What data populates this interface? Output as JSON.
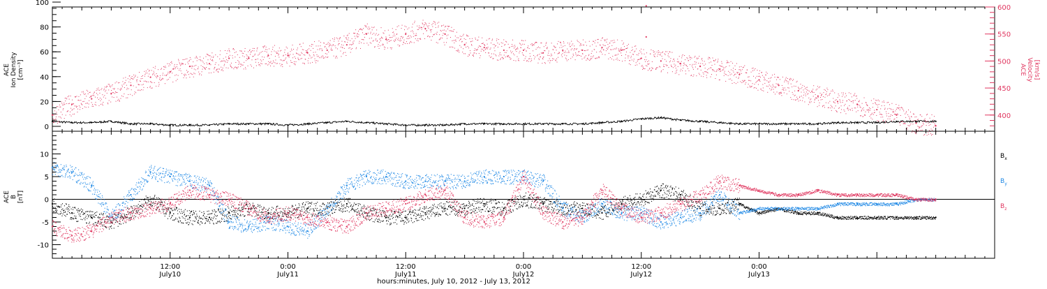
{
  "chart_data": [
    {
      "type": "scatter",
      "panel": "top",
      "ylabel_left": [
        "ACE",
        "Ion Density",
        "[cm⁻³]"
      ],
      "ylabel_right": [
        "ACE",
        "Velocity",
        "[km/s]"
      ],
      "ylim_left": [
        0,
        100
      ],
      "ylim_right": [
        370,
        600
      ],
      "yticks_left": [
        "0",
        "20",
        "40",
        "60",
        "80",
        "100"
      ],
      "yticks_right": [
        "400",
        "450",
        "500",
        "550",
        "600"
      ],
      "colors": {
        "density": "#000000",
        "velocity": "#e0365f"
      },
      "series": [
        {
          "name": "",
          "color_key": "density",
          "axis": "left",
          "x_hours": [
            0,
            2,
            4,
            6,
            8,
            10,
            12,
            14,
            16,
            18,
            20,
            22,
            24,
            26,
            28,
            30,
            32,
            34,
            36,
            38,
            40,
            42,
            44,
            46,
            48,
            50,
            52,
            54,
            56,
            58,
            60,
            62,
            64,
            66,
            68,
            70,
            72,
            74,
            76,
            78,
            80,
            82,
            84,
            86,
            88,
            90
          ],
          "values": [
            4,
            3,
            3,
            4,
            2,
            2,
            1,
            1,
            1,
            2,
            2,
            2,
            1,
            2,
            3,
            4,
            3,
            2,
            1,
            1,
            1,
            2,
            2,
            2,
            2,
            2,
            2,
            2,
            3,
            4,
            6,
            7,
            5,
            4,
            3,
            2,
            2,
            2,
            2,
            2,
            3,
            3,
            3,
            4,
            4,
            4
          ]
        },
        {
          "name": "",
          "color_key": "velocity",
          "axis": "right",
          "x_hours": [
            0,
            2,
            4,
            6,
            8,
            10,
            12,
            14,
            16,
            18,
            20,
            22,
            24,
            26,
            28,
            30,
            32,
            34,
            36,
            38,
            40,
            42,
            44,
            46,
            48,
            50,
            52,
            54,
            56,
            58,
            60,
            62,
            64,
            66,
            68,
            70,
            72,
            74,
            76,
            78,
            80,
            82,
            84,
            86,
            88,
            90
          ],
          "values": [
            400,
            420,
            430,
            440,
            455,
            470,
            480,
            490,
            495,
            505,
            505,
            510,
            510,
            515,
            520,
            530,
            550,
            540,
            550,
            560,
            550,
            530,
            525,
            520,
            520,
            515,
            520,
            520,
            525,
            520,
            505,
            500,
            495,
            490,
            485,
            475,
            465,
            455,
            445,
            435,
            425,
            420,
            410,
            400,
            385,
            380
          ]
        },
        {
          "name": "",
          "color_key": "velocity",
          "axis": "left",
          "style": "isolated",
          "x_hours": [
            60.5,
            60.5
          ],
          "values": [
            97,
            72
          ]
        }
      ]
    },
    {
      "type": "scatter",
      "panel": "bottom",
      "ylabel": [
        "ACE",
        "B",
        "[nT]"
      ],
      "ylim": [
        -13,
        15
      ],
      "yticks": [
        "-10",
        "-5",
        "0",
        "5",
        "10"
      ],
      "zero_line": true,
      "colors": {
        "Bx": "#000000",
        "By": "#1e88e5",
        "Bz": "#e0365f"
      },
      "legend": [
        "B",
        "B",
        "B"
      ],
      "legend_sub": [
        "x",
        "y",
        "z"
      ],
      "series": [
        {
          "name": "Bx",
          "x_hours": [
            0,
            2,
            4,
            6,
            8,
            10,
            12,
            14,
            16,
            18,
            20,
            22,
            24,
            26,
            28,
            30,
            32,
            34,
            36,
            38,
            40,
            42,
            44,
            46,
            48,
            50,
            52,
            54,
            56,
            58,
            60,
            62,
            64,
            66,
            68,
            70,
            72,
            74,
            76,
            78,
            80,
            82,
            84,
            86,
            88,
            90
          ],
          "values": [
            -1,
            -3,
            -4,
            -5,
            -3,
            0,
            -3,
            -4,
            -4,
            -3,
            -2,
            -3,
            -3,
            -2,
            -2,
            -1,
            -3,
            -4,
            -4,
            -3,
            -2,
            -2,
            -1,
            -2,
            0,
            -1,
            -2,
            -2,
            -3,
            -1,
            0,
            2,
            1,
            -2,
            -2,
            -1,
            -3,
            -2,
            -3,
            -3,
            -4,
            -4,
            -4,
            -4,
            -4,
            -4
          ]
        },
        {
          "name": "By",
          "x_hours": [
            0,
            2,
            4,
            6,
            8,
            10,
            12,
            14,
            16,
            18,
            20,
            22,
            24,
            26,
            28,
            30,
            32,
            34,
            36,
            38,
            40,
            42,
            44,
            46,
            48,
            50,
            52,
            54,
            56,
            58,
            60,
            62,
            64,
            66,
            68,
            70,
            72,
            74,
            76,
            78,
            80,
            82,
            84,
            86,
            88,
            90
          ],
          "values": [
            7,
            6,
            3,
            -4,
            1,
            6,
            5,
            4,
            3,
            -5,
            -6,
            -5,
            -6,
            -7,
            -2,
            3,
            5,
            5,
            4,
            4,
            4,
            4,
            5,
            5,
            5,
            4,
            -2,
            -4,
            -1,
            -3,
            -3,
            -5,
            -4,
            -3,
            1,
            -3,
            -2,
            -2,
            -2,
            -2,
            -1,
            -1,
            -1,
            -1,
            0,
            0
          ]
        },
        {
          "name": "Bz",
          "x_hours": [
            0,
            2,
            4,
            6,
            8,
            10,
            12,
            14,
            16,
            18,
            20,
            22,
            24,
            26,
            28,
            30,
            32,
            34,
            36,
            38,
            40,
            42,
            44,
            46,
            48,
            50,
            52,
            54,
            56,
            58,
            60,
            62,
            64,
            66,
            68,
            70,
            72,
            74,
            76,
            78,
            80,
            82,
            84,
            86,
            88,
            90
          ],
          "values": [
            -6,
            -8,
            -7,
            -4,
            -3,
            -2,
            -1,
            2,
            1,
            0,
            -2,
            -4,
            -3,
            -4,
            -5,
            -6,
            -3,
            -2,
            -1,
            1,
            2,
            -4,
            -5,
            -4,
            5,
            -3,
            -5,
            -4,
            2,
            -2,
            -4,
            -3,
            -1,
            1,
            4,
            3,
            2,
            1,
            1,
            2,
            1,
            1,
            1,
            1,
            0,
            0
          ]
        }
      ]
    }
  ],
  "xaxis": {
    "xlim_hours": [
      0,
      96
    ],
    "tick_times": [
      "12:00",
      "0:00",
      "12:00",
      "0:00",
      "12:00",
      "0:00"
    ],
    "tick_days": [
      "July10",
      "July11",
      "July11",
      "July12",
      "July12",
      "July13"
    ],
    "tick_hours": [
      12,
      24,
      36,
      48,
      60,
      72
    ],
    "xlabel": "hours:minutes, July 10, 2012 - July 13, 2012"
  }
}
